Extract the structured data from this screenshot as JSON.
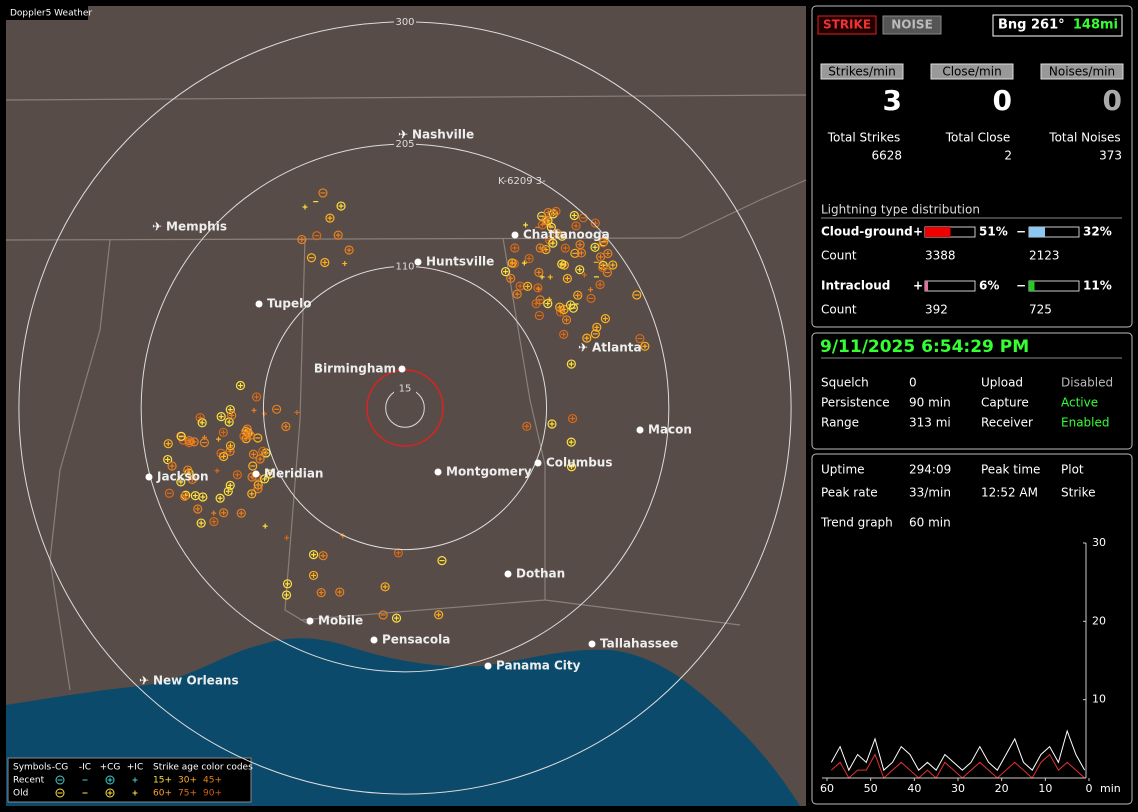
{
  "map": {
    "title": "Doppler5 Weather",
    "ring_labels": [
      300,
      205,
      110,
      15
    ],
    "cities": [
      "Nashville",
      "Memphis",
      "Chattanooga",
      "Huntsville",
      "Tupelo",
      "Birmingham",
      "Atlanta",
      "Macon",
      "Jackson",
      "Meridian",
      "Montgomery",
      "Columbus",
      "Dothan",
      "Mobile",
      "Pensacola",
      "Tallahassee",
      "Panama City",
      "New Orleans"
    ],
    "station": "K-6209  3-",
    "legend": {
      "symbols": "Symbols",
      "types": [
        "-CG",
        "-IC",
        "+CG",
        "+IC"
      ],
      "age_title": "Strike age color codes",
      "rows": [
        "Recent",
        "Old"
      ],
      "ages": [
        "15+",
        "30+",
        "45+",
        "60+",
        "75+",
        "90+"
      ]
    }
  },
  "header": {
    "strike": "STRIKE",
    "noise": "NOISE",
    "bearing": "Bng 261°",
    "distance": "148mi"
  },
  "stats": {
    "labels": [
      "Strikes/min",
      "Close/min",
      "Noises/min"
    ],
    "values": [
      3,
      0,
      0
    ],
    "total_labels": [
      "Total Strikes",
      "Total Close",
      "Total Noises"
    ],
    "totals": [
      6628,
      2,
      373
    ]
  },
  "distribution": {
    "title": "Lightning type distribution",
    "count_label": "Count",
    "plus": "+",
    "minus": "−",
    "rows": [
      {
        "name": "Cloud-ground",
        "positive": {
          "value": 51,
          "label": "51%"
        },
        "negative": {
          "value": 32,
          "label": "32%"
        },
        "positive_count": 3388,
        "negative_count": 2123
      },
      {
        "name": "Intracloud",
        "positive": {
          "value": 6,
          "label": "6%"
        },
        "negative": {
          "value": 11,
          "label": "11%"
        },
        "positive_count": 392,
        "negative_count": 725
      }
    ]
  },
  "status": {
    "datetime": "9/11/2025 6:54:29 PM",
    "rows": [
      [
        "Squelch",
        "0",
        "Upload",
        "Disabled"
      ],
      [
        "Persistence",
        "90 min",
        "Capture",
        "Active"
      ],
      [
        "Range",
        "313 mi",
        "Receiver",
        "Enabled"
      ]
    ]
  },
  "uptime": {
    "rows": [
      [
        "Uptime",
        "294:09",
        "Peak time",
        "Plot"
      ],
      [
        "Peak rate",
        "33/min",
        "12:52 AM",
        "Strike"
      ]
    ]
  },
  "trend": {
    "title": "Trend graph",
    "window": "60 min",
    "x_unit": "min",
    "xlim": [
      60,
      0
    ],
    "xticks": [
      60,
      50,
      40,
      30,
      20,
      10,
      0
    ],
    "ylim": [
      0,
      30
    ],
    "yticks": [
      10,
      20,
      30
    ],
    "x": [
      59,
      57,
      55,
      53,
      51,
      49,
      47,
      45,
      43,
      41,
      39,
      37,
      35,
      33,
      31,
      29,
      27,
      25,
      23,
      21,
      19,
      17,
      15,
      13,
      11,
      9,
      7,
      5,
      3,
      1
    ],
    "series": [
      {
        "color": "#ffffff",
        "values": [
          2,
          4,
          1,
          3,
          2,
          5,
          1,
          2,
          4,
          3,
          1,
          2,
          1,
          3,
          2,
          1,
          2,
          4,
          2,
          1,
          3,
          5,
          2,
          1,
          3,
          4,
          2,
          6,
          3,
          1
        ]
      },
      {
        "color": "#e03030",
        "values": [
          1,
          2,
          0,
          1,
          1,
          3,
          0,
          1,
          2,
          1,
          0,
          1,
          0,
          2,
          1,
          0,
          1,
          2,
          1,
          0,
          1,
          2,
          1,
          0,
          2,
          3,
          1,
          2,
          1,
          0
        ]
      }
    ]
  }
}
